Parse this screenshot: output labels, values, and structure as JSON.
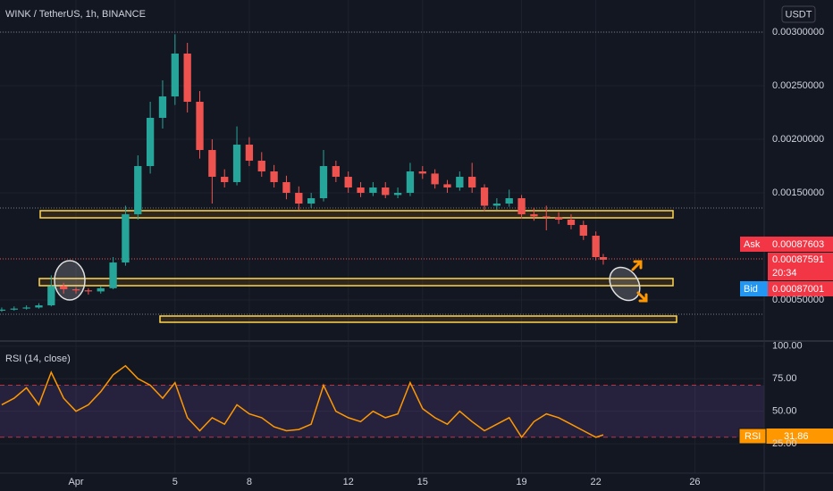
{
  "chart_data": [
    {
      "type": "candlestick",
      "title": "WINK / TetherUS, 1h, BINANCE",
      "currency": "USDT",
      "x": [
        -2,
        -1.5,
        -1,
        -0.5,
        0,
        0.5,
        1,
        1.5,
        2,
        2.5,
        3,
        3.5,
        4,
        4.5,
        5,
        5.5,
        6,
        6.5,
        7,
        7.5,
        8,
        8.5,
        9,
        9.5,
        10,
        10.5,
        11,
        11.5,
        12,
        12.5,
        13,
        13.5,
        14,
        14.5,
        15,
        15.5,
        16,
        16.5,
        17,
        17.5,
        18,
        18.5,
        19,
        19.5,
        20,
        20.5,
        21,
        21.5,
        22,
        22.3
      ],
      "open": [
        0.0004,
        0.00041,
        0.00042,
        0.00043,
        0.00045,
        0.00063,
        0.0006,
        0.00059,
        0.00058,
        0.00061,
        0.00085,
        0.0013,
        0.00175,
        0.0022,
        0.0024,
        0.0028,
        0.00235,
        0.0019,
        0.00165,
        0.0016,
        0.00195,
        0.0018,
        0.0017,
        0.0016,
        0.0015,
        0.0014,
        0.00145,
        0.00175,
        0.00165,
        0.00155,
        0.0015,
        0.00155,
        0.00148,
        0.0015,
        0.0017,
        0.00168,
        0.00158,
        0.00155,
        0.00165,
        0.00155,
        0.00138,
        0.0014,
        0.00145,
        0.0013,
        0.00128,
        0.00127,
        0.00125,
        0.0012,
        0.0011,
        0.0009
      ],
      "high": [
        0.00043,
        0.00044,
        0.00045,
        0.00047,
        0.00073,
        0.00066,
        0.00062,
        0.00061,
        0.00063,
        0.0009,
        0.00138,
        0.00185,
        0.00235,
        0.00255,
        0.00298,
        0.0029,
        0.00245,
        0.002,
        0.00172,
        0.00212,
        0.00202,
        0.00188,
        0.00176,
        0.00166,
        0.00156,
        0.0015,
        0.0019,
        0.0018,
        0.0017,
        0.0016,
        0.0016,
        0.0016,
        0.00155,
        0.00178,
        0.00175,
        0.00172,
        0.00162,
        0.0017,
        0.00178,
        0.00158,
        0.00145,
        0.00153,
        0.00148,
        0.00136,
        0.00138,
        0.00132,
        0.0013,
        0.00124,
        0.00114,
        0.00093
      ],
      "low": [
        0.00039,
        0.0004,
        0.00041,
        0.00042,
        0.00044,
        0.00056,
        0.00056,
        0.00055,
        0.00056,
        0.0006,
        0.00082,
        0.00125,
        0.00168,
        0.0021,
        0.00232,
        0.00225,
        0.00182,
        0.0014,
        0.00155,
        0.00157,
        0.00175,
        0.00165,
        0.00155,
        0.00144,
        0.00134,
        0.00136,
        0.00142,
        0.0016,
        0.0015,
        0.00146,
        0.00147,
        0.00145,
        0.00145,
        0.00147,
        0.00163,
        0.00154,
        0.0015,
        0.00152,
        0.0015,
        0.00133,
        0.00134,
        0.00137,
        0.00126,
        0.00124,
        0.00115,
        0.00121,
        0.00116,
        0.00106,
        0.00087,
        0.00083
      ],
      "close": [
        0.00041,
        0.00042,
        0.00043,
        0.00045,
        0.00063,
        0.0006,
        0.00059,
        0.00058,
        0.00061,
        0.00085,
        0.0013,
        0.00175,
        0.0022,
        0.0024,
        0.0028,
        0.00235,
        0.0019,
        0.00165,
        0.0016,
        0.00195,
        0.0018,
        0.0017,
        0.0016,
        0.0015,
        0.0014,
        0.00145,
        0.00175,
        0.00165,
        0.00155,
        0.0015,
        0.00155,
        0.00148,
        0.0015,
        0.0017,
        0.00168,
        0.00158,
        0.00155,
        0.00165,
        0.00155,
        0.00138,
        0.0014,
        0.00145,
        0.0013,
        0.00128,
        0.00127,
        0.00125,
        0.0012,
        0.0011,
        0.0009,
        0.00087591
      ],
      "up_color": "#26a69a",
      "down_color": "#ef5350",
      "xlim": [
        -2.07,
        28.8
      ],
      "ylim": [
        0.000117,
        0.0033
      ],
      "yticks": [
        {
          "value": 0.003,
          "label": "0.00300000"
        },
        {
          "value": 0.0025,
          "label": "0.00250000"
        },
        {
          "value": 0.002,
          "label": "0.00200000"
        },
        {
          "value": 0.0015,
          "label": "0.00150000"
        },
        {
          "value": 0.0005,
          "label": "0.00050000"
        }
      ],
      "ask_label": "Ask",
      "ask": 0.00087603,
      "countdown": "20:34",
      "bid_label": "Bid",
      "bid": 0.00087001
    },
    {
      "type": "line",
      "title": "RSI (14, close)",
      "tag": "RSI",
      "color": "#ff9800",
      "x": [
        -2,
        -1.5,
        -1,
        -0.5,
        0,
        0.5,
        1,
        1.5,
        2,
        2.5,
        3,
        3.5,
        4,
        4.5,
        5,
        5.5,
        6,
        6.5,
        7,
        7.5,
        8,
        8.5,
        9,
        9.5,
        10,
        10.5,
        11,
        11.5,
        12,
        12.5,
        13,
        13.5,
        14,
        14.5,
        15,
        15.5,
        16,
        16.5,
        17,
        17.5,
        18,
        18.5,
        19,
        19.5,
        20,
        20.5,
        21,
        21.5,
        22,
        22.3
      ],
      "values": [
        55,
        60,
        68,
        55,
        80,
        60,
        50,
        55,
        65,
        78,
        85,
        75,
        70,
        60,
        72,
        45,
        35,
        45,
        40,
        55,
        48,
        45,
        38,
        35,
        36,
        40,
        70,
        50,
        45,
        42,
        50,
        45,
        48,
        72,
        52,
        45,
        40,
        50,
        42,
        35,
        40,
        45,
        30,
        42,
        48,
        45,
        40,
        35,
        30,
        31.86
      ],
      "band": [
        30,
        70
      ],
      "xlim": [
        -2.07,
        28.8
      ],
      "ylim": [
        2.4,
        104
      ],
      "yticks": [
        {
          "value": 100,
          "label": "100.00"
        },
        {
          "value": 75,
          "label": "75.00"
        },
        {
          "value": 50,
          "label": "50.00"
        },
        {
          "value": 25,
          "label": "25.00"
        }
      ],
      "xticks": [
        {
          "value": 1,
          "label": "Apr"
        },
        5,
        8,
        12,
        15,
        19,
        22,
        26
      ]
    }
  ]
}
